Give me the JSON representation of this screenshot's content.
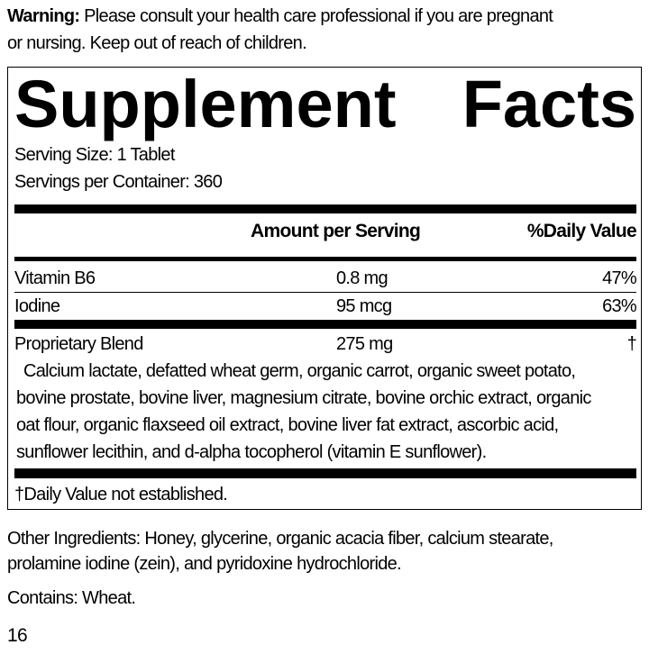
{
  "warning": {
    "label": "Warning:",
    "lines": [
      "Please consult your health care professional if you are pregnant",
      "or nursing. Keep out of reach of children."
    ]
  },
  "facts": {
    "title_words": [
      "Supplement",
      "Facts"
    ],
    "serving_size": "Serving Size: 1 Tablet",
    "servings_per_container": "Servings per Container: 360",
    "headers": {
      "amount": "Amount per Serving",
      "dv": "%Daily Value"
    },
    "rows": [
      {
        "name": "Vitamin B6",
        "amount": "0.8 mg",
        "dv": "47%"
      },
      {
        "name": "Iodine",
        "amount": "95 mcg",
        "dv": "63%"
      },
      {
        "name": "Proprietary Blend",
        "amount": "275 mg",
        "dv": "†"
      }
    ],
    "blend_lines": [
      "Calcium lactate, defatted wheat germ, organic carrot, organic sweet potato,",
      "bovine prostate, bovine liver, magnesium citrate, bovine orchic extract, organic",
      "oat flour, organic flaxseed oil extract, bovine liver fat extract, ascorbic acid,",
      "sunflower lecithin, and d-alpha tocopherol (vitamin E sunflower)."
    ],
    "footnote": "†Daily Value not established."
  },
  "other_ingredients": [
    "Other Ingredients: Honey, glycerine, organic acacia fiber, calcium stearate,",
    "prolamine iodine (zein), and pyridoxine hydrochloride."
  ],
  "contains": "Contains: Wheat.",
  "page_number": "16"
}
